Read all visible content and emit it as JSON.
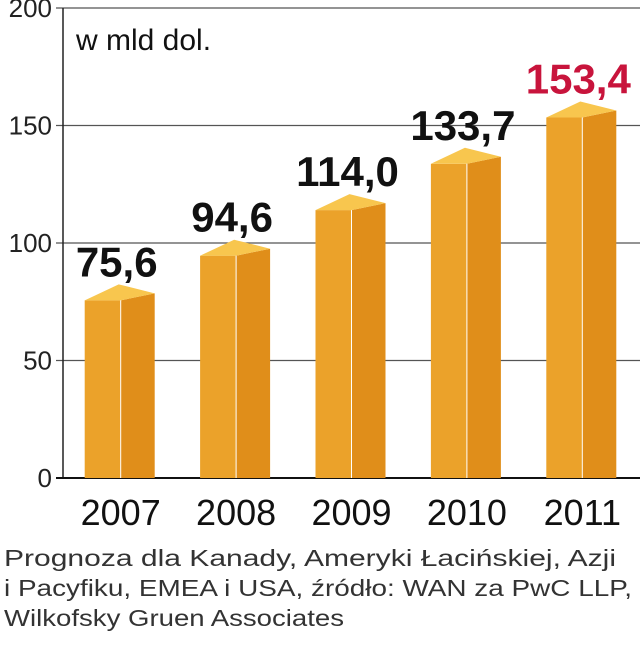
{
  "chart_data": {
    "type": "bar3d",
    "unit_label": "w mld dol.",
    "categories": [
      "2007",
      "2008",
      "2009",
      "2010",
      "2011"
    ],
    "values": [
      75.6,
      94.6,
      114.0,
      133.7,
      153.4
    ],
    "value_labels": [
      "75,6",
      "94,6",
      "114,0",
      "133,7",
      "153,4"
    ],
    "value_label_colors": [
      "#111111",
      "#111111",
      "#111111",
      "#111111",
      "#c8143c"
    ],
    "color": "#eba22a",
    "side_color": "#e08e1a",
    "top_color": "#f8c64e",
    "ylim": [
      0,
      200
    ],
    "yticks": [
      0,
      50,
      100,
      150,
      200
    ],
    "grid": true,
    "footnote": [
      "Prognoza dla Kanady, Ameryki Łacińskiej, Azji",
      "i Pacyfiku, EMEA i USA, źródło: WAN za PwC LLP,",
      "Wilkofsky Gruen Associates"
    ]
  }
}
